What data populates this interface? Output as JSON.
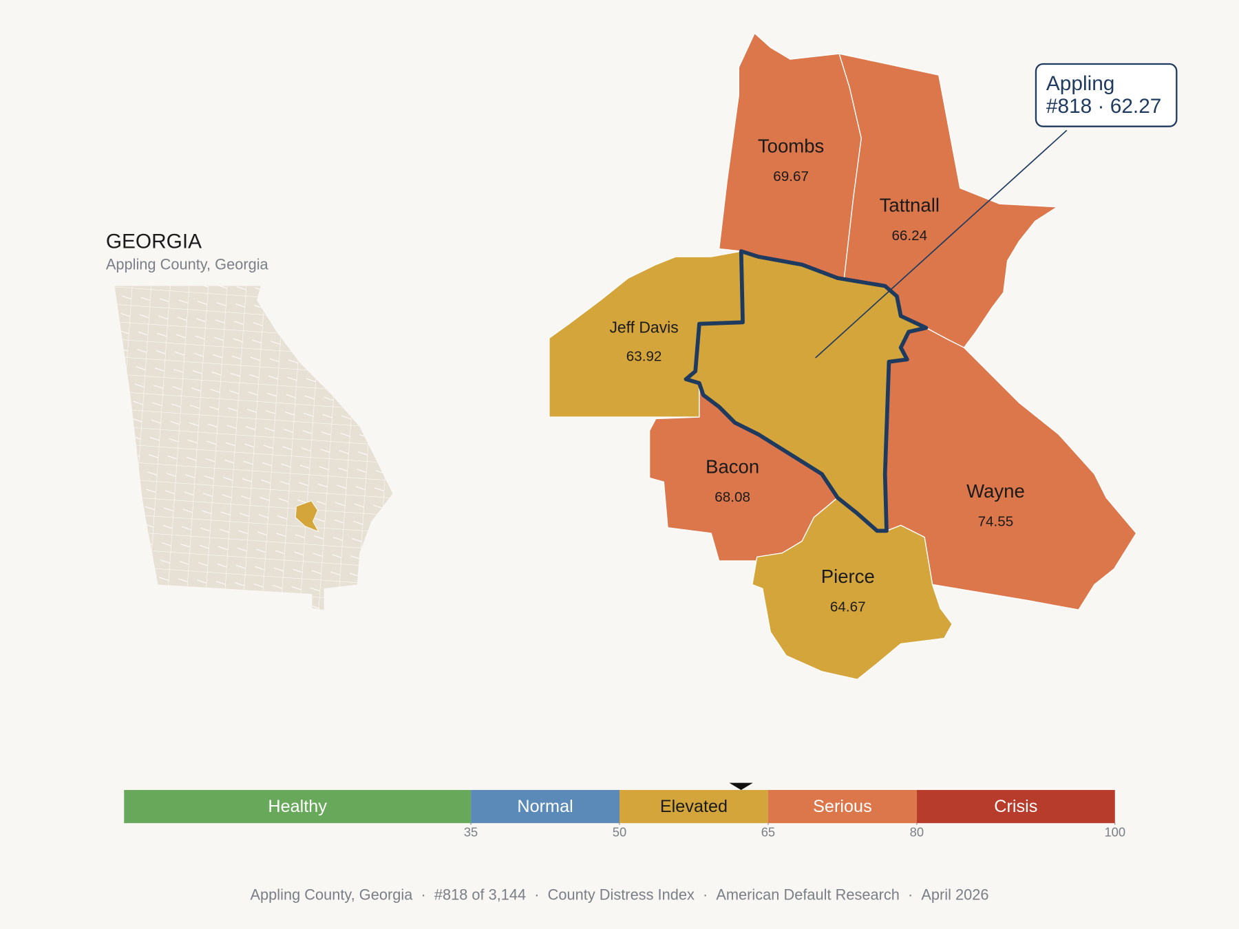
{
  "header": {
    "title": "GEORGIA",
    "subtitle": "Appling County, Georgia"
  },
  "callout": {
    "name": "Appling",
    "label": "#818 · 62.27",
    "score": 62.27
  },
  "counties": [
    {
      "id": "toombs",
      "name": "Toombs",
      "score": "69.67"
    },
    {
      "id": "tattnall",
      "name": "Tattnall",
      "score": "66.24"
    },
    {
      "id": "jeffdavis",
      "name": "Jeff Davis",
      "score": "63.92"
    },
    {
      "id": "bacon",
      "name": "Bacon",
      "score": "68.08"
    },
    {
      "id": "wayne",
      "name": "Wayne",
      "score": "74.55"
    },
    {
      "id": "pierce",
      "name": "Pierce",
      "score": "64.67"
    }
  ],
  "scale": {
    "lim": [
      0,
      100
    ],
    "ticks": [
      35,
      50,
      65,
      80,
      100
    ],
    "categories": [
      {
        "name": "Healthy",
        "color": "#67a85a",
        "label_color": "#ffffff"
      },
      {
        "name": "Normal",
        "color": "#5b8ab8",
        "label_color": "#ffffff"
      },
      {
        "name": "Elevated",
        "color": "#d4a53a",
        "label_color": "#1a1a1a"
      },
      {
        "name": "Serious",
        "color": "#dc774b",
        "label_color": "#ffffff"
      },
      {
        "name": "Crisis",
        "color": "#b83c2b",
        "label_color": "#ffffff"
      }
    ]
  },
  "footer": {
    "parts": [
      "Appling County, Georgia",
      "#818 of 3,144",
      "County Distress Index",
      "American Default Research",
      "April 2026"
    ],
    "separator": "·"
  }
}
